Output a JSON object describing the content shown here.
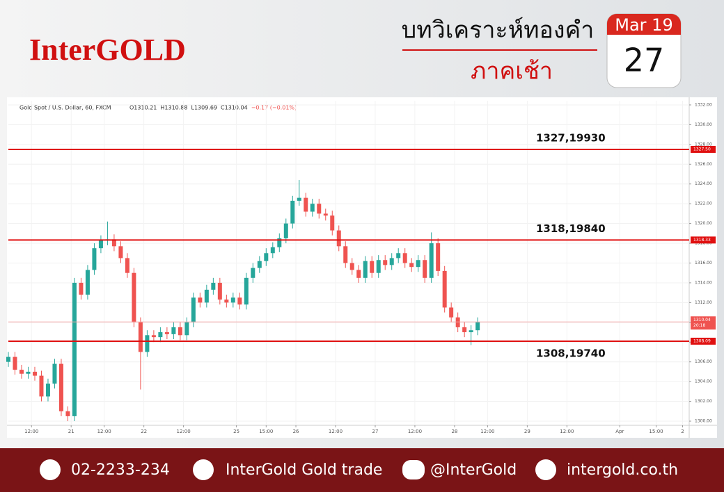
{
  "header": {
    "logo": "InterGOLD",
    "title": "บทวิเคราะห์ทองคำ",
    "subtitle": "ภาคเช้า",
    "date_month": "Mar 19",
    "date_day": "27"
  },
  "chart_data": {
    "type": "candlestick",
    "symbol": "Gold Spot / U.S. Dollar, 60, FXCM",
    "ohlc_text": [
      "O1310.21",
      "H1310.88",
      "L1309.69",
      "C1310.04",
      "−0.17 (−0.01%)"
    ],
    "x": [
      0,
      2,
      4,
      6,
      8,
      10,
      12,
      14,
      16,
      18,
      20,
      22,
      24,
      26,
      28,
      30,
      32,
      34,
      36,
      38,
      40,
      42,
      44,
      46,
      48,
      50,
      52,
      54,
      56,
      58,
      60,
      62,
      64,
      66,
      68,
      70,
      72,
      74,
      76,
      78,
      80,
      82,
      84,
      86,
      88,
      90,
      92,
      94,
      96,
      98,
      100,
      102,
      104,
      106,
      108,
      110,
      112,
      114,
      116,
      118,
      120,
      122,
      124,
      126,
      128,
      130,
      132,
      134,
      136,
      138,
      140,
      142
    ],
    "open": [
      1306.0,
      1306.5,
      1305.2,
      1304.8,
      1305.0,
      1304.6,
      1302.5,
      1303.8,
      1305.8,
      1301.0,
      1300.5,
      1314.0,
      1312.8,
      1315.3,
      1317.5,
      1318.3,
      1318.4,
      1317.7,
      1316.5,
      1315.0,
      1310.0,
      1307.0,
      1308.7,
      1308.5,
      1309.0,
      1308.8,
      1309.5,
      1308.7,
      1310.0,
      1312.5,
      1312.0,
      1313.3,
      1314.0,
      1312.3,
      1312.0,
      1312.5,
      1311.8,
      1314.5,
      1315.5,
      1316.2,
      1317.0,
      1317.6,
      1318.5,
      1320.0,
      1322.3,
      1322.6,
      1321.2,
      1322.0,
      1321.0,
      1320.8,
      1319.3,
      1317.7,
      1316.0,
      1315.3,
      1314.5,
      1316.2,
      1315.0,
      1316.3,
      1315.8,
      1316.5,
      1317.0,
      1316.0,
      1315.6,
      1316.3,
      1314.5,
      1318.0,
      1315.2,
      1311.5,
      1310.5,
      1309.5,
      1309.0,
      1309.2
    ],
    "high": [
      1307.0,
      1307.0,
      1305.7,
      1305.5,
      1305.5,
      1305.1,
      1304.3,
      1306.3,
      1306.3,
      1301.5,
      1314.5,
      1314.5,
      1315.8,
      1318.0,
      1318.8,
      1320.2,
      1318.9,
      1318.2,
      1317.0,
      1315.5,
      1310.5,
      1309.2,
      1309.2,
      1309.5,
      1309.5,
      1310.0,
      1310.0,
      1310.5,
      1313.0,
      1313.0,
      1313.8,
      1314.5,
      1314.5,
      1312.8,
      1313.0,
      1313.0,
      1315.0,
      1316.0,
      1316.7,
      1317.5,
      1318.1,
      1319.0,
      1320.5,
      1322.8,
      1324.4,
      1323.1,
      1322.5,
      1322.5,
      1321.5,
      1321.3,
      1319.8,
      1318.2,
      1316.5,
      1315.8,
      1316.7,
      1316.7,
      1316.8,
      1316.8,
      1317.0,
      1317.5,
      1317.5,
      1316.5,
      1316.8,
      1316.8,
      1319.1,
      1318.5,
      1315.7,
      1312.0,
      1311.0,
      1310.0,
      1309.7,
      1310.5
    ],
    "low": [
      1305.5,
      1304.7,
      1304.3,
      1304.3,
      1304.1,
      1302.0,
      1302.0,
      1303.3,
      1300.5,
      1300.0,
      1300.0,
      1312.3,
      1312.3,
      1314.8,
      1317.0,
      1317.8,
      1317.2,
      1316.0,
      1314.5,
      1309.5,
      1303.2,
      1306.5,
      1308.0,
      1308.0,
      1308.3,
      1308.3,
      1308.2,
      1308.2,
      1309.5,
      1311.5,
      1311.5,
      1312.8,
      1311.8,
      1311.5,
      1311.5,
      1311.3,
      1311.3,
      1314.0,
      1315.0,
      1315.7,
      1316.5,
      1317.1,
      1318.0,
      1319.5,
      1321.8,
      1320.7,
      1320.7,
      1320.5,
      1320.3,
      1318.8,
      1317.2,
      1315.5,
      1314.8,
      1314.0,
      1314.0,
      1314.5,
      1314.5,
      1315.3,
      1315.3,
      1316.0,
      1315.5,
      1315.1,
      1315.1,
      1314.0,
      1314.0,
      1314.7,
      1311.0,
      1310.0,
      1309.0,
      1308.5,
      1307.7,
      1308.7
    ],
    "close": [
      1306.5,
      1305.2,
      1304.8,
      1305.0,
      1304.6,
      1302.5,
      1303.8,
      1305.8,
      1301.0,
      1300.5,
      1314.0,
      1312.8,
      1315.3,
      1317.5,
      1318.3,
      1318.4,
      1317.7,
      1316.5,
      1315.0,
      1310.0,
      1307.0,
      1308.7,
      1308.5,
      1309.0,
      1308.8,
      1309.5,
      1308.7,
      1310.0,
      1312.5,
      1312.0,
      1313.3,
      1314.0,
      1312.3,
      1312.0,
      1312.5,
      1311.8,
      1314.5,
      1315.5,
      1316.2,
      1317.0,
      1317.6,
      1318.5,
      1320.0,
      1322.3,
      1322.6,
      1321.2,
      1322.0,
      1321.0,
      1320.8,
      1319.3,
      1317.7,
      1316.0,
      1315.3,
      1314.5,
      1316.2,
      1315.0,
      1316.3,
      1315.8,
      1316.5,
      1317.0,
      1316.0,
      1315.6,
      1316.3,
      1314.5,
      1318.0,
      1315.2,
      1311.5,
      1310.5,
      1309.5,
      1309.0,
      1309.2,
      1310.0
    ],
    "up_color": "#26a69a",
    "down_color": "#ef5350",
    "grid": true,
    "xlim": [
      0,
      206
    ],
    "xticks": [
      {
        "value": 7,
        "label": "12:00"
      },
      {
        "value": 19,
        "label": "21"
      },
      {
        "value": 29,
        "label": "12:00"
      },
      {
        "value": 41,
        "label": "22"
      },
      {
        "value": 53,
        "label": "12:00"
      },
      {
        "value": 69,
        "label": "25"
      },
      {
        "value": 78,
        "label": "15:00"
      },
      {
        "value": 87,
        "label": "26"
      },
      {
        "value": 99,
        "label": "12:00"
      },
      {
        "value": 111,
        "label": "27"
      },
      {
        "value": 123,
        "label": "12:00"
      },
      {
        "value": 135,
        "label": "28"
      },
      {
        "value": 145,
        "label": "12:00"
      },
      {
        "value": 157,
        "label": "29"
      },
      {
        "value": 169,
        "label": "12:00"
      },
      {
        "value": 185,
        "label": "Apr"
      },
      {
        "value": 196,
        "label": "15:00"
      },
      {
        "value": 204,
        "label": "2"
      }
    ],
    "ylim": [
      1299.58,
      1332.42
    ],
    "yticks": [
      {
        "value": 1300,
        "label": "1300.00"
      },
      {
        "value": 1302,
        "label": "1302.00"
      },
      {
        "value": 1304,
        "label": "1304.00"
      },
      {
        "value": 1306,
        "label": "1306.00"
      },
      {
        "value": 1308,
        "label": "1308.00"
      },
      {
        "value": 1310,
        "label": "1310.00"
      },
      {
        "value": 1312,
        "label": "1312.00"
      },
      {
        "value": 1314,
        "label": "1314.00"
      },
      {
        "value": 1316,
        "label": "1316.00"
      },
      {
        "value": 1318,
        "label": "1318.00"
      },
      {
        "value": 1320,
        "label": "1320.00"
      },
      {
        "value": 1322,
        "label": "1322.00"
      },
      {
        "value": 1324,
        "label": "1324.00"
      },
      {
        "value": 1326,
        "label": "1326.00"
      },
      {
        "value": 1328,
        "label": "1328.00"
      },
      {
        "value": 1330,
        "label": "1330.00"
      },
      {
        "value": 1332,
        "label": "1332.00"
      }
    ],
    "levels": [
      {
        "value": 1327.5,
        "label": "1327.50",
        "note": "1327,19930"
      },
      {
        "value": 1318.33,
        "label": "1318.33",
        "note": "1318,19840"
      },
      {
        "value": 1308.09,
        "label": "1308.09",
        "note": "1308,19740"
      }
    ],
    "level_color": "#e01010",
    "last_price": {
      "value": 1310.04,
      "label": "1310.04",
      "countdown": "20:18"
    }
  },
  "footer": {
    "phone": "02-2233-234",
    "facebook": "InterGold Gold trade",
    "line": "@InterGold",
    "website": "intergold.co.th"
  }
}
